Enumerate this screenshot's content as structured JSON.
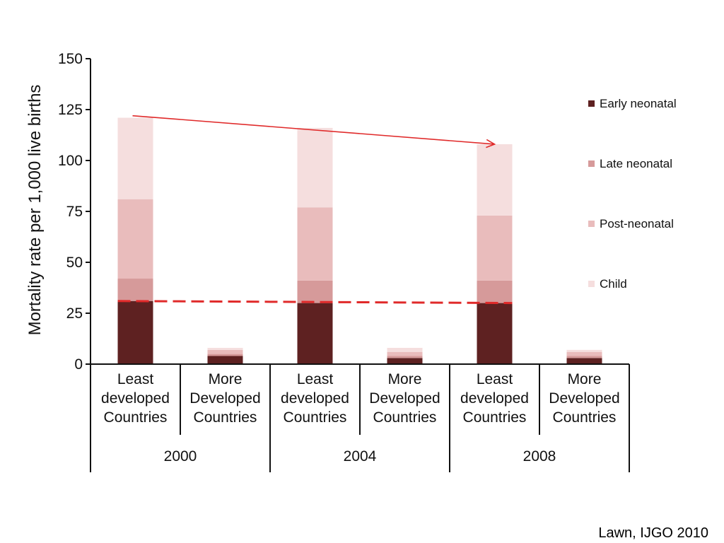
{
  "chart_data": {
    "type": "bar",
    "stacked": true,
    "ylabel": "Mortality rate per 1,000 live births",
    "ylim": [
      0,
      150
    ],
    "yticks": [
      0,
      25,
      50,
      75,
      100,
      125,
      150
    ],
    "groups": [
      {
        "year": "2000",
        "categories": [
          [
            "Least",
            "developed",
            "Countries"
          ],
          [
            "More",
            "Developed",
            "Countries"
          ]
        ]
      },
      {
        "year": "2004",
        "categories": [
          [
            "Least",
            "developed",
            "Countries"
          ],
          [
            "More",
            "Developed",
            "Countries"
          ]
        ]
      },
      {
        "year": "2008",
        "categories": [
          [
            "Least",
            "developed",
            "Countries"
          ],
          [
            "More",
            "Developed",
            "Countries"
          ]
        ]
      }
    ],
    "series": [
      {
        "name": "Early neonatal",
        "color": "#5e2121",
        "values": [
          31,
          4,
          30,
          3,
          30,
          3
        ]
      },
      {
        "name": "Late neonatal",
        "color": "#d69a9a",
        "values": [
          11,
          1,
          11,
          1,
          11,
          1
        ]
      },
      {
        "name": "Post-neonatal",
        "color": "#e9bcbc",
        "values": [
          39,
          2,
          36,
          2,
          32,
          2
        ]
      },
      {
        "name": "Child",
        "color": "#f5dede",
        "values": [
          40,
          1,
          39,
          2,
          35,
          1
        ]
      }
    ],
    "annotations": {
      "solid_trend": {
        "color": "#e02a2a",
        "from": {
          "bar": 0,
          "y": 122
        },
        "to": {
          "bar": 4,
          "y": 108
        }
      },
      "dashed_trend": {
        "color": "#e02a2a",
        "from": {
          "bar": 0,
          "y": 31
        },
        "to": {
          "bar": 4,
          "y": 30
        }
      }
    },
    "legend_position": "right"
  },
  "source": "Lawn, IJGO 2010"
}
